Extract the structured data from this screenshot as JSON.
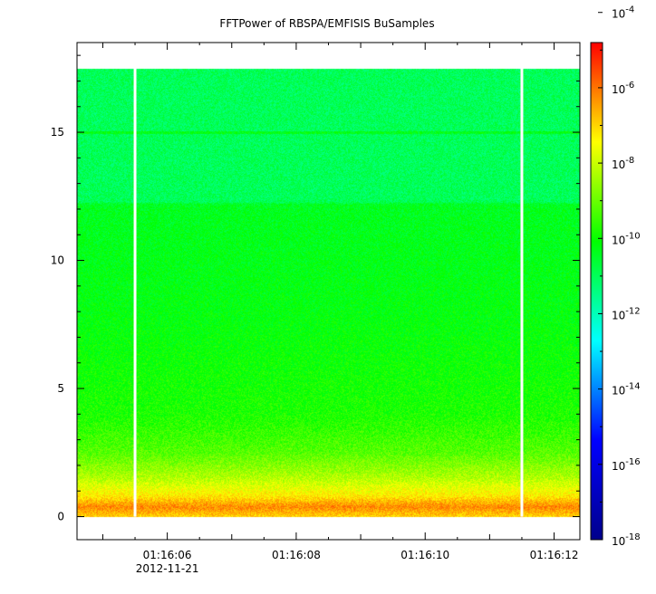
{
  "chart_data": {
    "type": "heatmap",
    "title": "FFTPower of RBSPA/EMFISIS  BuSamples",
    "x_axis": {
      "ticks": [
        "01:16:06",
        "01:16:08",
        "01:16:10",
        "01:16:12"
      ],
      "date_label": "2012-11-21",
      "range": [
        "01:16:04.6",
        "01:16:12.4"
      ]
    },
    "y_axis": {
      "ticks": [
        "0",
        "5",
        "10",
        "15"
      ],
      "range": [
        -0.9,
        18.5
      ],
      "data_top": 17.5
    },
    "colorbar": {
      "scale": "log",
      "range_exponent": [
        -18,
        -4.8
      ],
      "ticks": [
        {
          "base": "10",
          "exp": "-4",
          "value": -4
        },
        {
          "base": "10",
          "exp": "-6",
          "value": -6
        },
        {
          "base": "10",
          "exp": "-8",
          "value": -8
        },
        {
          "base": "10",
          "exp": "-10",
          "value": -10
        },
        {
          "base": "10",
          "exp": "-12",
          "value": -12
        },
        {
          "base": "10",
          "exp": "-14",
          "value": -14
        },
        {
          "base": "10",
          "exp": "-16",
          "value": -16
        },
        {
          "base": "10",
          "exp": "-18",
          "value": -18
        }
      ],
      "colors": [
        "#00008b",
        "#0000ff",
        "#00ffff",
        "#00ff00",
        "#ffff00",
        "#ff0000"
      ]
    },
    "data_gaps_time": [
      "01:16:05.5",
      "01:16:11.5"
    ],
    "power_profile": [
      {
        "y": 0.0,
        "exp": -7.0
      },
      {
        "y": 0.4,
        "exp": -6.2
      },
      {
        "y": 0.8,
        "exp": -7.2
      },
      {
        "y": 1.5,
        "exp": -8.2
      },
      {
        "y": 2.5,
        "exp": -9.2
      },
      {
        "y": 4.0,
        "exp": -9.8
      },
      {
        "y": 8.0,
        "exp": -10.2
      },
      {
        "y": 12.2,
        "exp": -10.4
      },
      {
        "y": 12.3,
        "exp": -11.0
      },
      {
        "y": 17.5,
        "exp": -11.0
      }
    ],
    "line_feature": {
      "y": 15.0,
      "exp": -10.3
    }
  }
}
